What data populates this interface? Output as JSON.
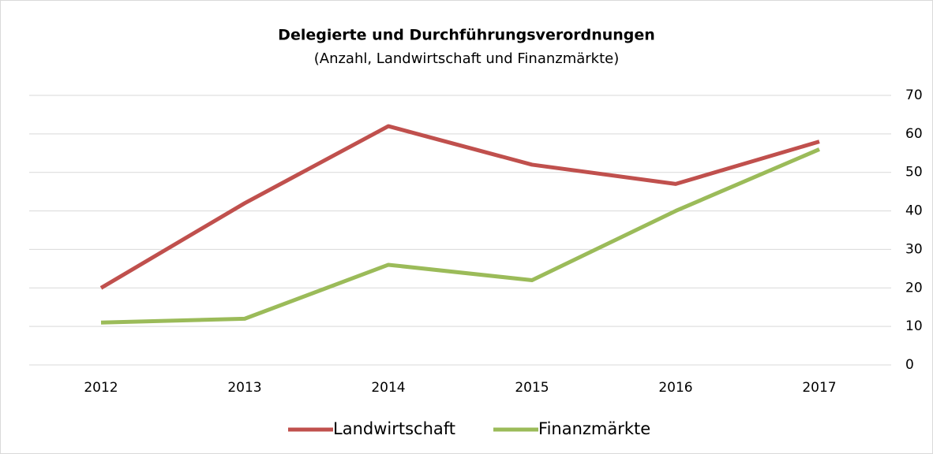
{
  "chart_data": {
    "type": "line",
    "title": "Delegierte und Durchführungsverordnungen",
    "subtitle": "(Anzahl, Landwirtschaft und Finanzmärkte)",
    "categories": [
      "2012",
      "2013",
      "2014",
      "2015",
      "2016",
      "2017"
    ],
    "series": [
      {
        "name": "Landwirtschaft",
        "color": "#c0504d",
        "values": [
          20,
          42,
          62,
          52,
          47,
          58
        ]
      },
      {
        "name": "Finanzmärkte",
        "color": "#9bbb59",
        "values": [
          11,
          12,
          26,
          22,
          40,
          56
        ]
      }
    ],
    "ylim": [
      0,
      70
    ],
    "yticks": [
      0,
      10,
      20,
      30,
      40,
      50,
      60,
      70
    ],
    "grid": true,
    "legend": "bottom"
  }
}
